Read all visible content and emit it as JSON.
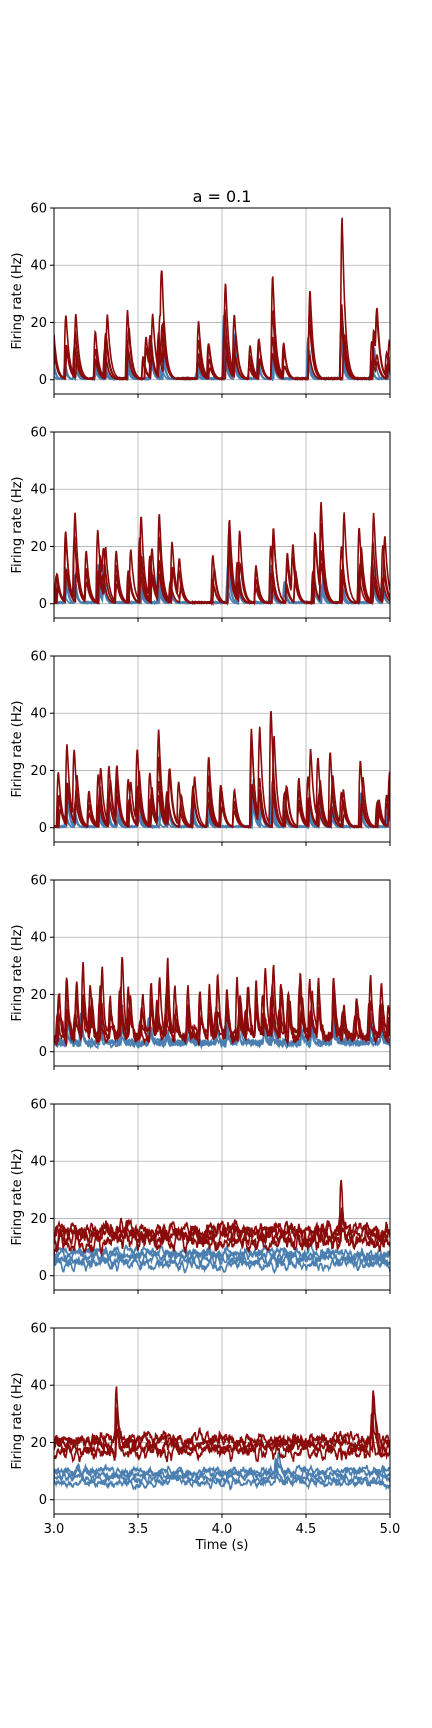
{
  "chart_data": {
    "type": "line",
    "title": "a = 0.1",
    "xlabel": "Time (s)",
    "ylabel": "Firing rate (Hz)",
    "xlim": [
      3.0,
      5.0
    ],
    "ylim": [
      -5,
      60
    ],
    "x_ticks": [
      "3.0",
      "3.5",
      "4.0",
      "4.5",
      "5.0"
    ],
    "x_tick_values": [
      3.0,
      3.5,
      4.0,
      4.5,
      5.0
    ],
    "y_ticks": [
      "0",
      "20",
      "40",
      "60"
    ],
    "y_tick_values": [
      0,
      20,
      40,
      60
    ],
    "grid": true,
    "colors": {
      "excitatory": "#8b0a0a",
      "inhibitory": "#4a7fb0"
    },
    "panels": [
      {
        "regime": "bursty",
        "red_max": 60,
        "blue_max": 30,
        "red_base": 0,
        "blue_base": 0,
        "noise": 0,
        "red_peaks": [
          [
            3.0,
            30
          ],
          [
            3.07,
            25
          ],
          [
            3.13,
            25
          ],
          [
            3.25,
            20
          ],
          [
            3.31,
            32
          ],
          [
            3.44,
            27
          ],
          [
            3.54,
            18
          ],
          [
            3.58,
            28
          ],
          [
            3.63,
            33
          ],
          [
            3.65,
            34
          ],
          [
            3.86,
            27
          ],
          [
            3.92,
            17
          ],
          [
            4.02,
            49
          ],
          [
            4.08,
            29
          ],
          [
            4.16,
            15
          ],
          [
            4.22,
            19
          ],
          [
            4.31,
            41
          ],
          [
            4.37,
            18
          ],
          [
            4.52,
            38
          ],
          [
            4.72,
            60
          ],
          [
            4.9,
            27
          ],
          [
            4.93,
            20
          ],
          [
            4.99,
            14
          ]
        ],
        "blue_peaks": [
          [
            3.0,
            8
          ],
          [
            3.07,
            10
          ],
          [
            3.13,
            12
          ],
          [
            3.25,
            8
          ],
          [
            3.31,
            10
          ],
          [
            3.44,
            14
          ],
          [
            3.58,
            15
          ],
          [
            3.65,
            17
          ],
          [
            3.86,
            10
          ],
          [
            4.02,
            28
          ],
          [
            4.08,
            18
          ],
          [
            4.22,
            12
          ],
          [
            4.31,
            22
          ],
          [
            4.52,
            16
          ],
          [
            4.72,
            30
          ],
          [
            4.9,
            12
          ],
          [
            4.99,
            10
          ]
        ]
      },
      {
        "regime": "bursty",
        "red_max": 49,
        "blue_max": 24,
        "red_base": 0,
        "blue_base": 0,
        "noise": 0,
        "red_peaks": [
          [
            3.02,
            18
          ],
          [
            3.07,
            36
          ],
          [
            3.13,
            35
          ],
          [
            3.2,
            25
          ],
          [
            3.27,
            30
          ],
          [
            3.3,
            29
          ],
          [
            3.37,
            20
          ],
          [
            3.45,
            21
          ],
          [
            3.52,
            32
          ],
          [
            3.58,
            27
          ],
          [
            3.63,
            36
          ],
          [
            3.7,
            25
          ],
          [
            3.75,
            18
          ],
          [
            3.95,
            20
          ],
          [
            4.04,
            49
          ],
          [
            4.1,
            29
          ],
          [
            4.2,
            20
          ],
          [
            4.3,
            39
          ],
          [
            4.38,
            20
          ],
          [
            4.43,
            25
          ],
          [
            4.55,
            31
          ],
          [
            4.6,
            36
          ],
          [
            4.72,
            34
          ],
          [
            4.82,
            28
          ],
          [
            4.9,
            36
          ],
          [
            4.96,
            30
          ]
        ],
        "blue_peaks": [
          [
            3.07,
            15
          ],
          [
            3.13,
            13
          ],
          [
            3.27,
            15
          ],
          [
            3.3,
            18
          ],
          [
            3.52,
            13
          ],
          [
            3.63,
            18
          ],
          [
            3.7,
            12
          ],
          [
            4.04,
            24
          ],
          [
            4.1,
            18
          ],
          [
            4.3,
            20
          ],
          [
            4.38,
            12
          ],
          [
            4.55,
            14
          ],
          [
            4.6,
            18
          ],
          [
            4.72,
            12
          ],
          [
            4.9,
            17
          ],
          [
            4.96,
            12
          ]
        ]
      },
      {
        "regime": "bursty",
        "red_max": 48,
        "blue_max": 25,
        "red_base": 0,
        "blue_base": 0,
        "noise": 0,
        "red_peaks": [
          [
            3.03,
            25
          ],
          [
            3.08,
            31
          ],
          [
            3.13,
            28
          ],
          [
            3.2,
            20
          ],
          [
            3.27,
            31
          ],
          [
            3.33,
            29
          ],
          [
            3.38,
            28
          ],
          [
            3.45,
            26
          ],
          [
            3.5,
            30
          ],
          [
            3.58,
            23
          ],
          [
            3.63,
            35
          ],
          [
            3.68,
            32
          ],
          [
            3.75,
            18
          ],
          [
            3.83,
            25
          ],
          [
            3.92,
            30
          ],
          [
            4.0,
            25
          ],
          [
            4.08,
            19
          ],
          [
            4.18,
            48
          ],
          [
            4.23,
            35
          ],
          [
            4.3,
            46
          ],
          [
            4.38,
            26
          ],
          [
            4.45,
            20
          ],
          [
            4.52,
            29
          ],
          [
            4.58,
            32
          ],
          [
            4.65,
            28
          ],
          [
            4.72,
            18
          ],
          [
            4.83,
            29
          ],
          [
            4.93,
            17
          ],
          [
            4.99,
            32
          ]
        ],
        "blue_peaks": [
          [
            3.08,
            14
          ],
          [
            3.13,
            12
          ],
          [
            3.27,
            16
          ],
          [
            3.33,
            12
          ],
          [
            3.38,
            13
          ],
          [
            3.5,
            14
          ],
          [
            3.63,
            17
          ],
          [
            3.68,
            14
          ],
          [
            3.83,
            12
          ],
          [
            3.92,
            13
          ],
          [
            4.18,
            25
          ],
          [
            4.23,
            14
          ],
          [
            4.3,
            24
          ],
          [
            4.38,
            12
          ],
          [
            4.52,
            14
          ],
          [
            4.58,
            16
          ],
          [
            4.65,
            12
          ],
          [
            4.83,
            14
          ],
          [
            4.99,
            15
          ]
        ]
      },
      {
        "regime": "irregular",
        "red_max": 37,
        "blue_max": 16,
        "red_base": 5,
        "blue_base": 3,
        "noise": 1.5,
        "red_peaks": [
          [
            3.03,
            26
          ],
          [
            3.08,
            30
          ],
          [
            3.13,
            22
          ],
          [
            3.17,
            31
          ],
          [
            3.22,
            25
          ],
          [
            3.28,
            30
          ],
          [
            3.33,
            24
          ],
          [
            3.4,
            37
          ],
          [
            3.45,
            23
          ],
          [
            3.52,
            22
          ],
          [
            3.57,
            30
          ],
          [
            3.62,
            27
          ],
          [
            3.67,
            32
          ],
          [
            3.72,
            25
          ],
          [
            3.8,
            28
          ],
          [
            3.87,
            22
          ],
          [
            3.92,
            24
          ],
          [
            3.97,
            30
          ],
          [
            4.03,
            29
          ],
          [
            4.1,
            30
          ],
          [
            4.15,
            25
          ],
          [
            4.2,
            25
          ],
          [
            4.25,
            27
          ],
          [
            4.3,
            30
          ],
          [
            4.35,
            28
          ],
          [
            4.4,
            22
          ],
          [
            4.47,
            25
          ],
          [
            4.53,
            28
          ],
          [
            4.58,
            24
          ],
          [
            4.66,
            30
          ],
          [
            4.72,
            17
          ],
          [
            4.8,
            20
          ],
          [
            4.88,
            26
          ],
          [
            4.95,
            25
          ],
          [
            5.0,
            18
          ]
        ],
        "blue_peaks": [
          [
            3.08,
            15
          ],
          [
            3.17,
            14
          ],
          [
            3.28,
            14
          ],
          [
            3.4,
            16
          ],
          [
            3.57,
            14
          ],
          [
            3.67,
            13
          ],
          [
            3.8,
            13
          ],
          [
            3.97,
            14
          ],
          [
            4.03,
            13
          ],
          [
            4.1,
            13
          ],
          [
            4.25,
            12
          ],
          [
            4.3,
            14
          ],
          [
            4.47,
            11
          ],
          [
            4.53,
            13
          ],
          [
            4.66,
            14
          ],
          [
            4.88,
            12
          ],
          [
            4.95,
            11
          ]
        ]
      },
      {
        "regime": "asynchronous",
        "red_max": 22,
        "blue_max": 10,
        "red_base": 15,
        "blue_base": 7,
        "noise": 2.5,
        "red_peaks": [
          [
            4.71,
            22
          ]
        ],
        "blue_peaks": []
      },
      {
        "regime": "asynchronous",
        "red_max": 27,
        "blue_max": 13,
        "red_base": 20,
        "blue_base": 9,
        "noise": 2,
        "red_peaks": [
          [
            4.9,
            27
          ],
          [
            3.38,
            26
          ]
        ],
        "blue_peaks": [
          [
            4.33,
            13
          ]
        ]
      }
    ]
  }
}
